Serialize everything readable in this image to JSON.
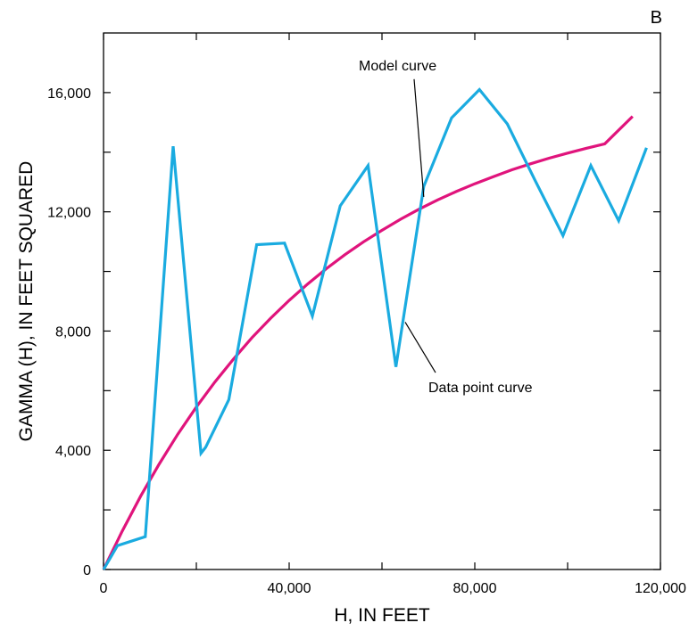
{
  "chart_data": {
    "type": "line",
    "panel_label": "B",
    "xlabel": "H, IN FEET",
    "ylabel": "GAMMA (H), IN FEET SQUARED",
    "xlim": [
      0,
      120000
    ],
    "ylim": [
      0,
      18000
    ],
    "x_ticks": [
      0,
      40000,
      80000,
      120000
    ],
    "x_tick_labels": [
      "0",
      "40,000",
      "80,000",
      "120,000"
    ],
    "x_minor_ticks": [
      20000,
      60000,
      100000
    ],
    "y_ticks": [
      0,
      4000,
      8000,
      12000,
      16000
    ],
    "y_tick_labels": [
      "0",
      "4,000",
      "8,000",
      "12,000",
      "16,000"
    ],
    "y_minor_ticks": [
      2000,
      6000,
      10000,
      14000
    ],
    "grid": false,
    "series": [
      {
        "name": "Data point curve",
        "color": "#1AABE0",
        "x": [
          0,
          3000,
          9000,
          15000,
          21000,
          22000,
          27000,
          33000,
          39000,
          45000,
          51000,
          57000,
          63000,
          69000,
          75000,
          81000,
          87000,
          93000,
          99000,
          105000,
          111000,
          117000
        ],
        "y": [
          0,
          800,
          1100,
          14200,
          3900,
          4100,
          5700,
          10900,
          10950,
          8500,
          12200,
          13550,
          6800,
          12850,
          15150,
          16100,
          14950,
          13050,
          11200,
          13550,
          11700,
          14150
        ]
      },
      {
        "name": "Model curve",
        "color": "#E0147C",
        "x": [
          0,
          4000,
          8000,
          12000,
          16000,
          20000,
          24000,
          28000,
          32000,
          36000,
          40000,
          44000,
          48000,
          52000,
          56000,
          60000,
          64000,
          68000,
          72000,
          76000,
          80000,
          84000,
          88000,
          92000,
          96000,
          100000,
          104000,
          108000,
          114000
        ],
        "y": [
          0,
          1280,
          2460,
          3540,
          4540,
          5450,
          6290,
          7060,
          7780,
          8430,
          9030,
          9580,
          10090,
          10560,
          10990,
          11380,
          11750,
          12090,
          12400,
          12680,
          12940,
          13180,
          13410,
          13610,
          13800,
          13970,
          14130,
          14280,
          15200
        ]
      }
    ],
    "annotations": [
      {
        "text": "Model curve",
        "series": "Model curve",
        "x": 55000,
        "y": 16750,
        "pointer_x": 69000,
        "pointer_y": 12500
      },
      {
        "text": "Data point curve",
        "series": "Data point curve",
        "x": 70000,
        "y": 5950,
        "pointer_x": 65000,
        "pointer_y": 8300
      }
    ]
  }
}
